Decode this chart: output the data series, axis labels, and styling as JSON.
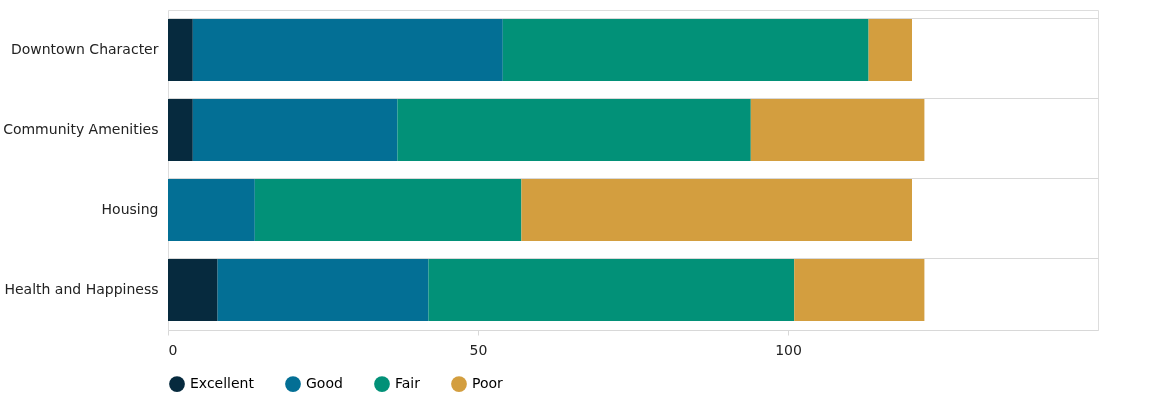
{
  "chart_data": {
    "type": "bar",
    "orientation": "horizontal",
    "stacked": true,
    "categories": [
      "Downtown Character",
      "Community Amenities",
      "Housing",
      "Health and Happiness"
    ],
    "series": [
      {
        "name": "Excellent",
        "color": "#062a3e",
        "values": [
          4,
          4,
          0,
          8
        ]
      },
      {
        "name": "Good",
        "color": "#036f95",
        "values": [
          50,
          33,
          14,
          34
        ]
      },
      {
        "name": "Fair",
        "color": "#029178",
        "values": [
          59,
          57,
          43,
          59
        ]
      },
      {
        "name": "Poor",
        "color": "#d39e3f",
        "values": [
          7,
          28,
          63,
          21
        ]
      }
    ],
    "xlim": [
      0,
      150
    ],
    "xticks": [
      0,
      50,
      100
    ],
    "grid": "y",
    "legend": "bottom"
  }
}
